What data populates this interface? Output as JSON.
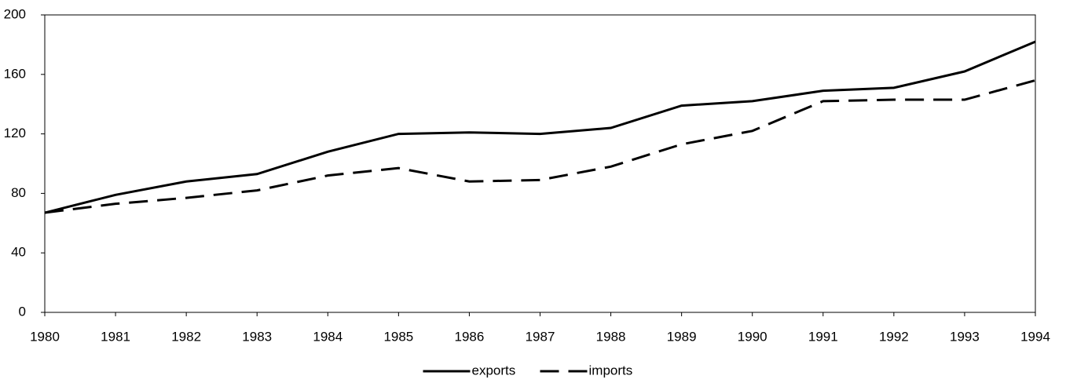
{
  "chart_data": {
    "type": "line",
    "x": [
      1980,
      1981,
      1982,
      1983,
      1984,
      1985,
      1986,
      1987,
      1988,
      1989,
      1990,
      1991,
      1992,
      1993,
      1994
    ],
    "series": [
      {
        "name": "exports",
        "color": "#000000",
        "dash": "solid",
        "values": [
          67,
          79,
          88,
          93,
          108,
          120,
          121,
          120,
          124,
          139,
          142,
          149,
          151,
          162,
          182
        ]
      },
      {
        "name": "imports",
        "color": "#000000",
        "dash": "dashed",
        "values": [
          67,
          73,
          77,
          82,
          92,
          97,
          88,
          89,
          98,
          113,
          122,
          142,
          143,
          143,
          156
        ]
      }
    ],
    "xlim": [
      1980,
      1994
    ],
    "xticks": [
      1980,
      1981,
      1982,
      1983,
      1984,
      1985,
      1986,
      1987,
      1988,
      1989,
      1990,
      1991,
      1992,
      1993,
      1994
    ],
    "ylim": [
      0,
      200
    ],
    "yticks": [
      0,
      40,
      80,
      120,
      160,
      200
    ],
    "grid": false,
    "legend": "bottom"
  }
}
